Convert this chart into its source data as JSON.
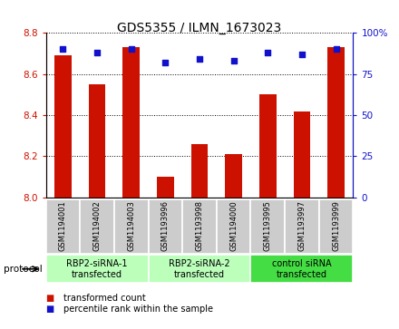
{
  "title": "GDS5355 / ILMN_1673023",
  "samples": [
    "GSM1194001",
    "GSM1194002",
    "GSM1194003",
    "GSM1193996",
    "GSM1193998",
    "GSM1194000",
    "GSM1193995",
    "GSM1193997",
    "GSM1193999"
  ],
  "transformed_counts": [
    8.69,
    8.55,
    8.73,
    8.1,
    8.26,
    8.21,
    8.5,
    8.42,
    8.73
  ],
  "percentile_ranks": [
    90,
    88,
    90,
    82,
    84,
    83,
    88,
    87,
    90
  ],
  "ylim_left": [
    8.0,
    8.8
  ],
  "ylim_right": [
    0,
    100
  ],
  "yticks_left": [
    8.0,
    8.2,
    8.4,
    8.6,
    8.8
  ],
  "yticks_right": [
    0,
    25,
    50,
    75,
    100
  ],
  "bar_color": "#cc1100",
  "dot_color": "#1111cc",
  "protocol_groups": [
    {
      "label": "RBP2-siRNA-1\ntransfected",
      "start": 0,
      "end": 3,
      "color": "#bbffbb"
    },
    {
      "label": "RBP2-siRNA-2\ntransfected",
      "start": 3,
      "end": 6,
      "color": "#bbffbb"
    },
    {
      "label": "control siRNA\ntransfected",
      "start": 6,
      "end": 9,
      "color": "#44dd44"
    }
  ],
  "legend_bar_label": "transformed count",
  "legend_dot_label": "percentile rank within the sample",
  "xlabel_protocol": "protocol",
  "sample_bg_color": "#cccccc",
  "sample_border_color": "#ffffff",
  "plot_bg_color": "#ffffff"
}
